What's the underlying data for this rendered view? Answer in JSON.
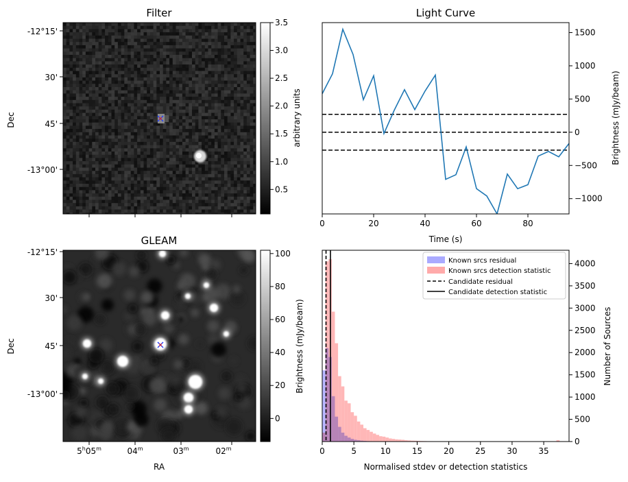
{
  "colors": {
    "light_curve": "#1f77b4",
    "known_residual": "#aaaaff",
    "known_detection": "#ffaaaa",
    "marker_blue": "#1f3fff",
    "marker_red": "#d62728"
  },
  "filter_panel": {
    "title": "Filter",
    "ylabel": "Dec",
    "dec_ticks": [
      "-12°15'",
      "30'",
      "45'",
      "-13°00'"
    ],
    "colorbar": {
      "label": "arbitrary units",
      "range": [
        0.06,
        3.5
      ],
      "ticks": [
        "0.5",
        "1.0",
        "1.5",
        "2.0",
        "2.5",
        "3.0",
        "3.5"
      ]
    }
  },
  "gleam_panel": {
    "title": "GLEAM",
    "ylabel": "Dec",
    "xlabel": "RA",
    "dec_ticks": [
      "-12°15'",
      "30'",
      "45'",
      "-13°00'"
    ],
    "ra_ticks": [
      "5h05m",
      "04m",
      "03m",
      "02m"
    ],
    "colorbar": {
      "label": "Brightness (mJy/beam)",
      "range": [
        -14,
        102
      ],
      "ticks": [
        "0",
        "20",
        "40",
        "60",
        "80",
        "100"
      ]
    }
  },
  "chart_data": [
    {
      "type": "line",
      "title": "Light Curve",
      "xlabel": "Time (s)",
      "ylabel": "Brightness (mJy/beam)",
      "xlim": [
        0,
        96
      ],
      "ylim": [
        -1230,
        1650
      ],
      "xticks": [
        0,
        20,
        40,
        60,
        80
      ],
      "yticks": [
        -1000,
        -500,
        0,
        500,
        1000,
        1500
      ],
      "x": [
        0,
        4,
        8,
        12,
        16,
        20,
        24,
        28,
        32,
        36,
        40,
        44,
        48,
        52,
        56,
        60,
        64,
        68,
        72,
        76,
        80,
        84,
        88,
        92,
        96
      ],
      "series": [
        {
          "values": [
            580,
            880,
            1550,
            1170,
            490,
            850,
            -20,
            330,
            640,
            340,
            620,
            860,
            -710,
            -640,
            -220,
            -850,
            -960,
            -1230,
            -630,
            -850,
            -790,
            -360,
            -290,
            -370,
            -170
          ]
        }
      ],
      "hlines": [
        270,
        0,
        -270
      ]
    },
    {
      "type": "bar",
      "title": "",
      "xlabel": "Normalised stdev or detection statistics",
      "ylabel": "Number of Sources",
      "xlim": [
        0,
        39
      ],
      "ylim": [
        0,
        4300
      ],
      "xticks": [
        0,
        5,
        10,
        15,
        20,
        25,
        30,
        35
      ],
      "yticks": [
        0,
        500,
        1000,
        1500,
        2000,
        2500,
        3000,
        3500,
        4000
      ],
      "legend": {
        "position": "top-right",
        "entries": [
          "Known srcs residual",
          "Known srcs detection statistic",
          "Candidate residual",
          "Candidate detection statistic"
        ]
      },
      "bin_width": 0.5,
      "series": [
        {
          "name": "Known srcs residual",
          "start": 0,
          "values": [
            1600,
            2100,
            1900,
            1020,
            560,
            330,
            200,
            130,
            90,
            60,
            40,
            30,
            20,
            15,
            10,
            8,
            6,
            4,
            3,
            2
          ]
        },
        {
          "name": "Known srcs detection statistic",
          "start": 0,
          "values": [
            200,
            4050,
            4100,
            2920,
            2210,
            1470,
            1240,
            920,
            860,
            660,
            580,
            450,
            380,
            300,
            260,
            220,
            180,
            150,
            120,
            110,
            90,
            70,
            60,
            50,
            45,
            40,
            30,
            25,
            20,
            18,
            15,
            12,
            10,
            8,
            8,
            6,
            5,
            4,
            4,
            3,
            3,
            2,
            2,
            2,
            2,
            1,
            1,
            1,
            1,
            1,
            1,
            1,
            1,
            1,
            1,
            1,
            1,
            1,
            1,
            1,
            1,
            1,
            1,
            1,
            1,
            1,
            1,
            1,
            1,
            1,
            1,
            1,
            1,
            1,
            30,
            0,
            0,
            0
          ]
        }
      ],
      "vlines": [
        {
          "name": "Candidate residual",
          "x": 0.6,
          "style": "dashed"
        },
        {
          "name": "Candidate detection statistic",
          "x": 1.3,
          "style": "solid"
        }
      ]
    }
  ]
}
